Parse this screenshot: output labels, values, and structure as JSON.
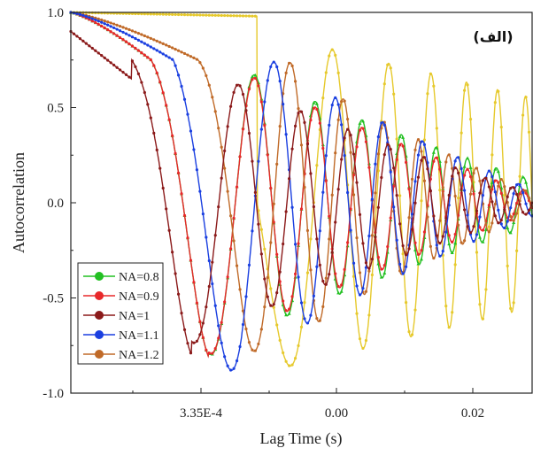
{
  "chart_data": {
    "type": "line",
    "title": "",
    "xlabel": "Lag Time (s)",
    "ylabel": "Autocorrelation",
    "annotation": "(الف)",
    "ylim": [
      -1.0,
      1.0
    ],
    "yticks": [
      "-1.0",
      "-0.5",
      "0.0",
      "0.5",
      "1.0"
    ],
    "xticks": [
      "3.35E-4",
      "0.00",
      "0.02"
    ],
    "grid": false,
    "legend_position": "bottom-left",
    "series": [
      {
        "name": "NA=0.8",
        "color": "#22c022",
        "marker": "triangle",
        "start": 1.0,
        "period": 0.12,
        "offset": 0.29,
        "amp": 0.83,
        "floor": 0.12
      },
      {
        "name": "NA=0.9",
        "color": "#e8282a",
        "marker": "circle",
        "start": 1.0,
        "period": 0.12,
        "offset": 0.29,
        "amp": 0.83,
        "floor": 0.05
      },
      {
        "name": "NA=1",
        "color": "#8b1a1a",
        "marker": "circle",
        "start": 0.9,
        "period": 0.113,
        "offset": 0.22,
        "amp": 0.82,
        "floor": 0.05
      },
      {
        "name": "NA=1.1",
        "color": "#1a3fe0",
        "marker": "circle",
        "start": 1.0,
        "period": 0.138,
        "offset": 0.37,
        "amp": 0.88,
        "floor": 0.07
      },
      {
        "name": "NA=1.2",
        "color": "#c06a28",
        "marker": "circle",
        "start": 1.0,
        "period": 0.12,
        "offset": 0.46,
        "amp": 0.78,
        "floor": 0.05
      },
      {
        "name": "",
        "color": "#e6c92c",
        "marker": "circle",
        "start": 1.0,
        "period": 0.208,
        "offset": 0.673,
        "amp": 0.9,
        "floor": 0.55
      }
    ]
  }
}
